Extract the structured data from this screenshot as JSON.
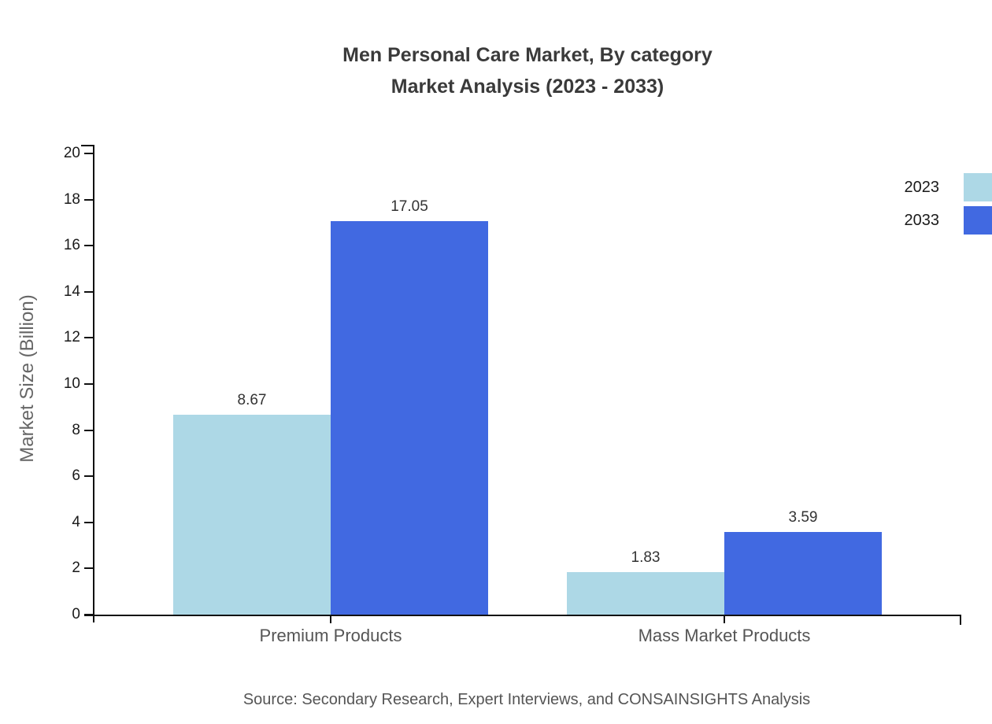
{
  "title": {
    "line1": "Men Personal Care Market, By category",
    "line2": "Market Analysis (2023 - 2033)"
  },
  "source": "Source: Secondary Research, Expert Interviews, and CONSAINSIGHTS Analysis",
  "colors": {
    "series_2023": "#ADD8E6",
    "series_2033": "#4169E1",
    "axis": "#111111",
    "title_text": "#3a3a3a",
    "muted_text": "#555555"
  },
  "chart_data": {
    "type": "bar",
    "title": "Men Personal Care Market, By category Market Analysis (2023 - 2033)",
    "categories": [
      "Premium Products",
      "Mass Market Products"
    ],
    "series": [
      {
        "name": "2023",
        "color": "#ADD8E6",
        "values": [
          8.67,
          1.83
        ]
      },
      {
        "name": "2033",
        "color": "#4169E1",
        "values": [
          17.05,
          3.59
        ]
      }
    ],
    "xlabel": "",
    "ylabel": "Market Size (Billion)",
    "ylim": [
      0,
      20
    ],
    "ytick_step": 2,
    "grid": false,
    "legend_position": "top-right",
    "value_label_decimals": 2
  }
}
